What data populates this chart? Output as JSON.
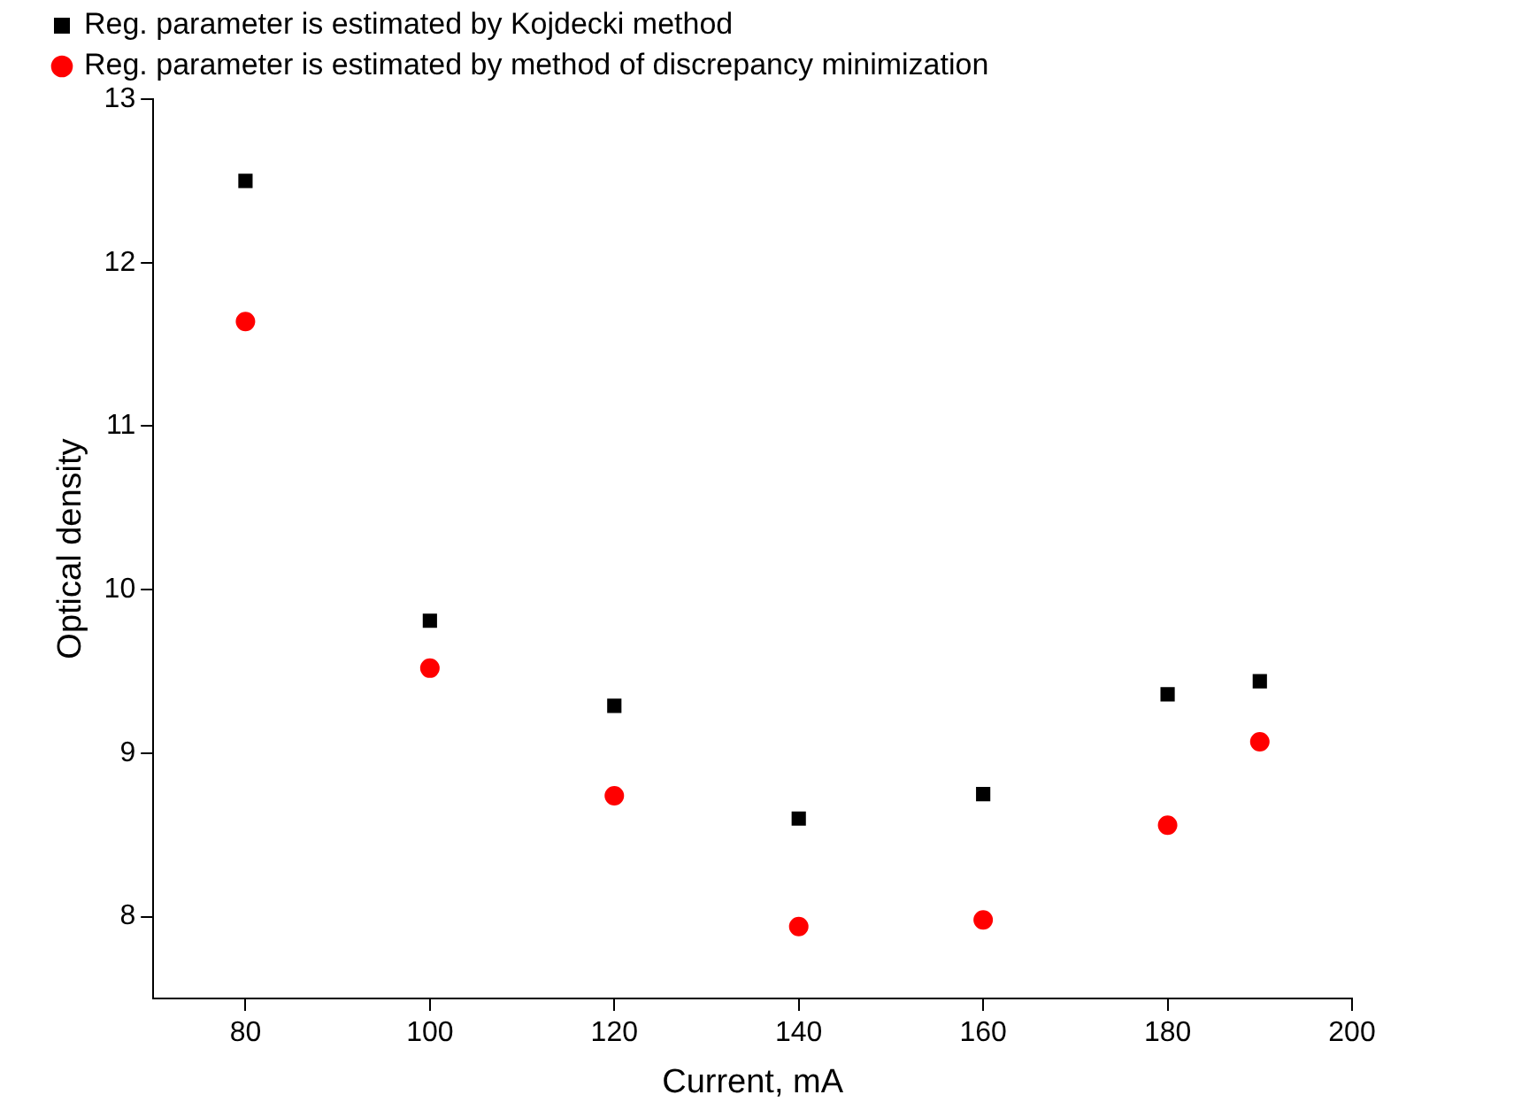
{
  "chart_data": {
    "type": "scatter",
    "xlabel": "Current, mA",
    "ylabel": "Optical density",
    "x": [
      80,
      100,
      120,
      140,
      160,
      180,
      190
    ],
    "series": [
      {
        "name": "Reg. parameter is estimated by Kojdecki method",
        "color": "#000000",
        "marker": "square",
        "values": [
          12.5,
          9.81,
          9.29,
          8.6,
          8.75,
          9.36,
          9.44
        ]
      },
      {
        "name": "Reg. parameter is estimated by method of discrepancy minimization",
        "color": "#ff0000",
        "marker": "circle",
        "values": [
          11.64,
          9.52,
          8.74,
          7.94,
          7.98,
          8.56,
          9.07
        ]
      }
    ],
    "xlim": [
      70,
      200
    ],
    "xticks": [
      80,
      100,
      120,
      140,
      160,
      180,
      200
    ],
    "ylim": [
      7.5,
      13
    ],
    "yticks": [
      8,
      9,
      10,
      11,
      12,
      13
    ],
    "grid": false,
    "legend": "top left"
  }
}
